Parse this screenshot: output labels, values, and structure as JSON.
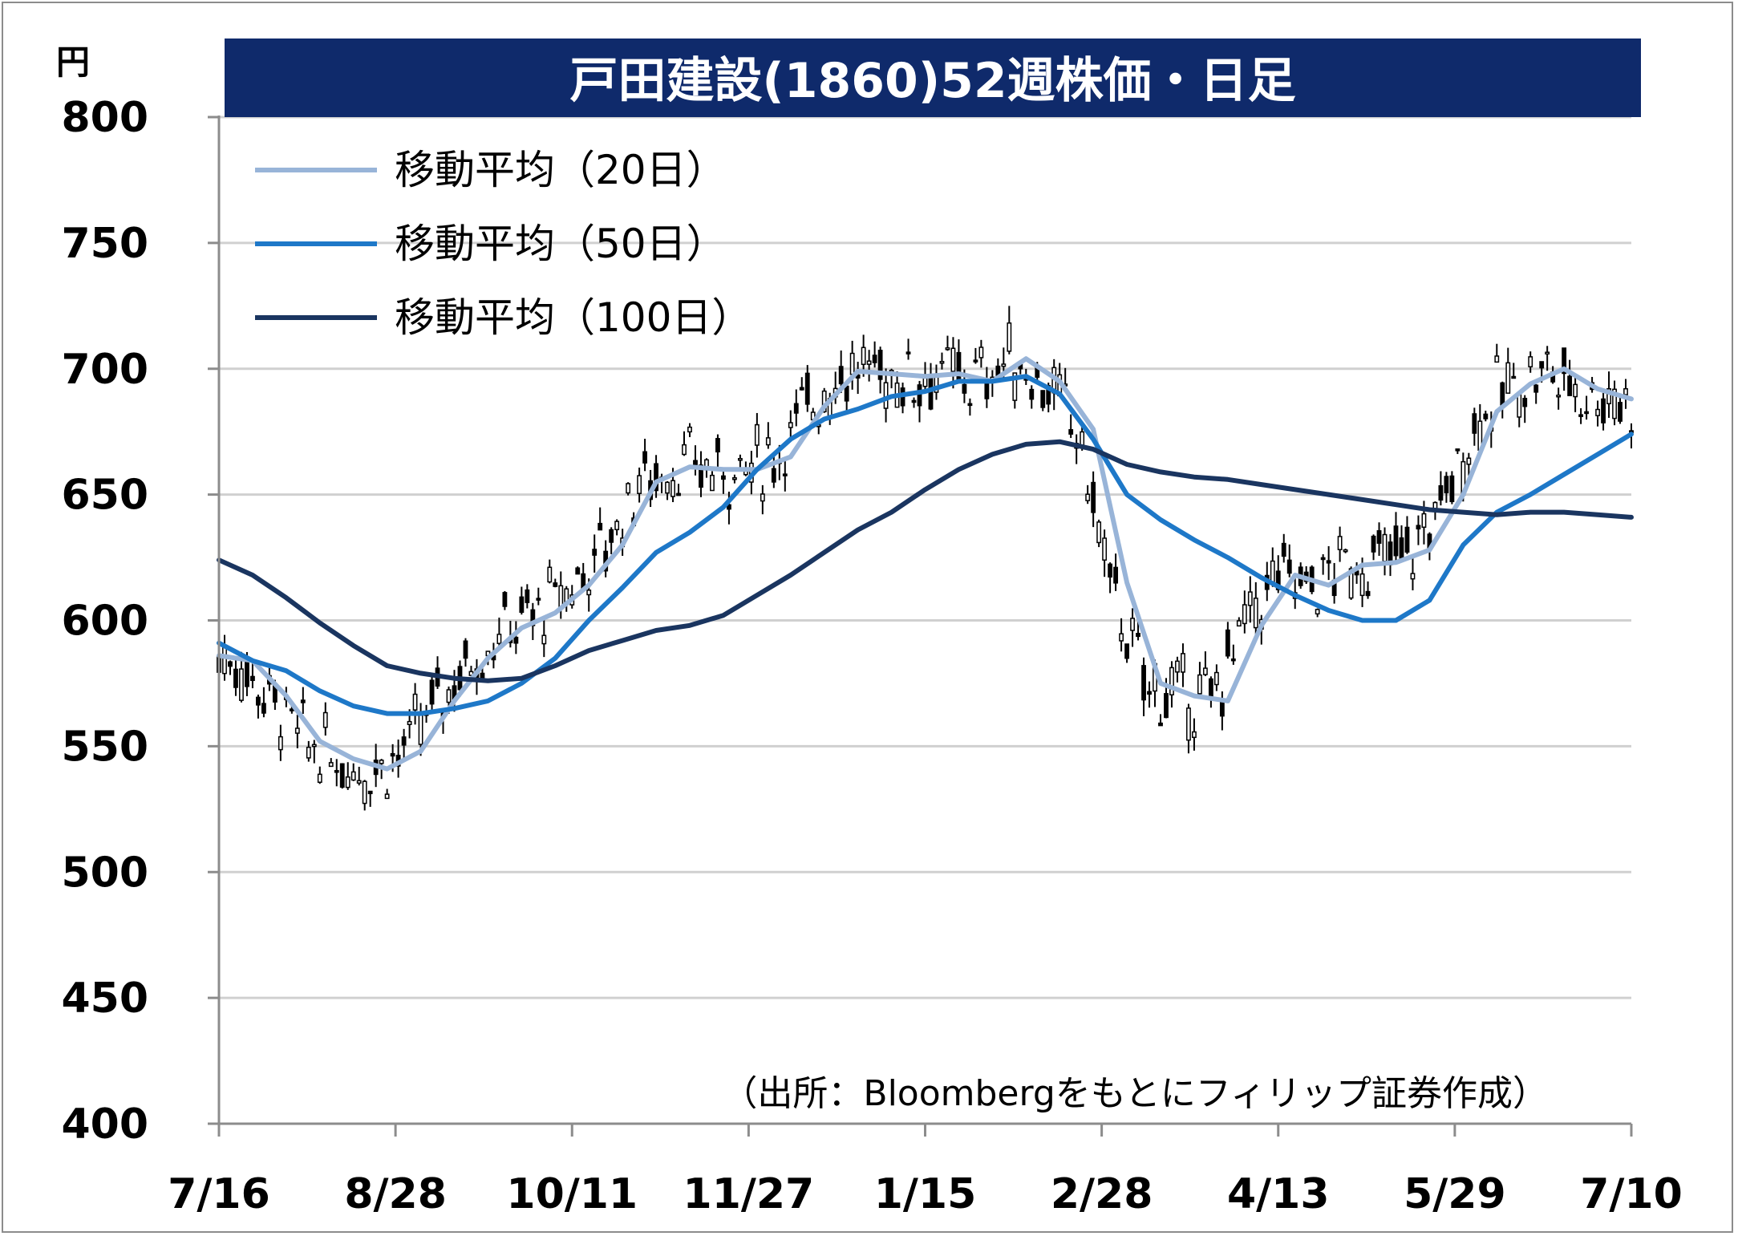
{
  "chart_data": {
    "type": "candlestick",
    "title": "戸田建設(1860)52週株価・日足",
    "ylabel": "円",
    "ylim": [
      400,
      800
    ],
    "y_ticks": [
      "800",
      "750",
      "700",
      "650",
      "600",
      "550",
      "500",
      "450",
      "400"
    ],
    "x_ticks": [
      "7/16",
      "8/28",
      "10/11",
      "11/27",
      "1/15",
      "2/28",
      "4/13",
      "5/29",
      "7/10"
    ],
    "source": "（出所：Bloombergをもとにフィリップ証券作成）",
    "grid": true,
    "legend_position": "top-left",
    "candle_colors": {
      "up": "#ffffff",
      "down": "#000000",
      "wick": "#000000"
    },
    "series": [
      {
        "name": "移動平均（20日）",
        "color": "#98b4d8",
        "x": [
          0,
          6,
          12,
          18,
          24,
          30,
          36,
          42,
          48,
          54,
          60,
          66,
          72,
          78,
          84,
          90,
          96,
          102,
          108,
          114,
          120,
          126,
          132,
          138,
          144,
          150,
          156,
          162,
          168,
          174,
          180,
          186,
          192,
          198,
          204,
          210,
          216,
          222,
          228,
          234,
          240,
          246,
          252
        ],
        "values": [
          586,
          584,
          570,
          552,
          545,
          541,
          548,
          568,
          585,
          597,
          603,
          614,
          630,
          655,
          661,
          660,
          660,
          665,
          685,
          699,
          698,
          697,
          698,
          695,
          704,
          695,
          676,
          615,
          575,
          570,
          568,
          598,
          618,
          614,
          622,
          623,
          628,
          650,
          683,
          694,
          700,
          692,
          688
        ]
      },
      {
        "name": "移動平均（50日）",
        "color": "#1e78c8",
        "x": [
          0,
          6,
          12,
          18,
          24,
          30,
          36,
          42,
          48,
          54,
          60,
          66,
          72,
          78,
          84,
          90,
          96,
          102,
          108,
          114,
          120,
          126,
          132,
          138,
          144,
          150,
          156,
          162,
          168,
          174,
          180,
          186,
          192,
          198,
          204,
          210,
          216,
          222,
          228,
          234,
          240,
          246,
          252
        ],
        "values": [
          591,
          584,
          580,
          572,
          566,
          563,
          563,
          565,
          568,
          575,
          585,
          600,
          613,
          627,
          635,
          645,
          660,
          672,
          680,
          684,
          689,
          691,
          695,
          695,
          697,
          690,
          672,
          650,
          640,
          632,
          625,
          617,
          610,
          604,
          600,
          600,
          608,
          630,
          643,
          650,
          658,
          666,
          674
        ]
      },
      {
        "name": "移動平均（100日）",
        "color": "#1a3560",
        "x": [
          0,
          6,
          12,
          18,
          24,
          30,
          36,
          42,
          48,
          54,
          60,
          66,
          72,
          78,
          84,
          90,
          96,
          102,
          108,
          114,
          120,
          126,
          132,
          138,
          144,
          150,
          156,
          162,
          168,
          174,
          180,
          186,
          192,
          198,
          204,
          210,
          216,
          222,
          228,
          234,
          240,
          246,
          252
        ],
        "values": [
          624,
          618,
          609,
          599,
          590,
          582,
          579,
          577,
          576,
          577,
          582,
          588,
          592,
          596,
          598,
          602,
          610,
          618,
          627,
          636,
          643,
          652,
          660,
          666,
          670,
          671,
          668,
          662,
          659,
          657,
          656,
          654,
          652,
          650,
          648,
          646,
          644,
          643,
          642,
          643,
          643,
          642,
          641
        ]
      }
    ]
  }
}
